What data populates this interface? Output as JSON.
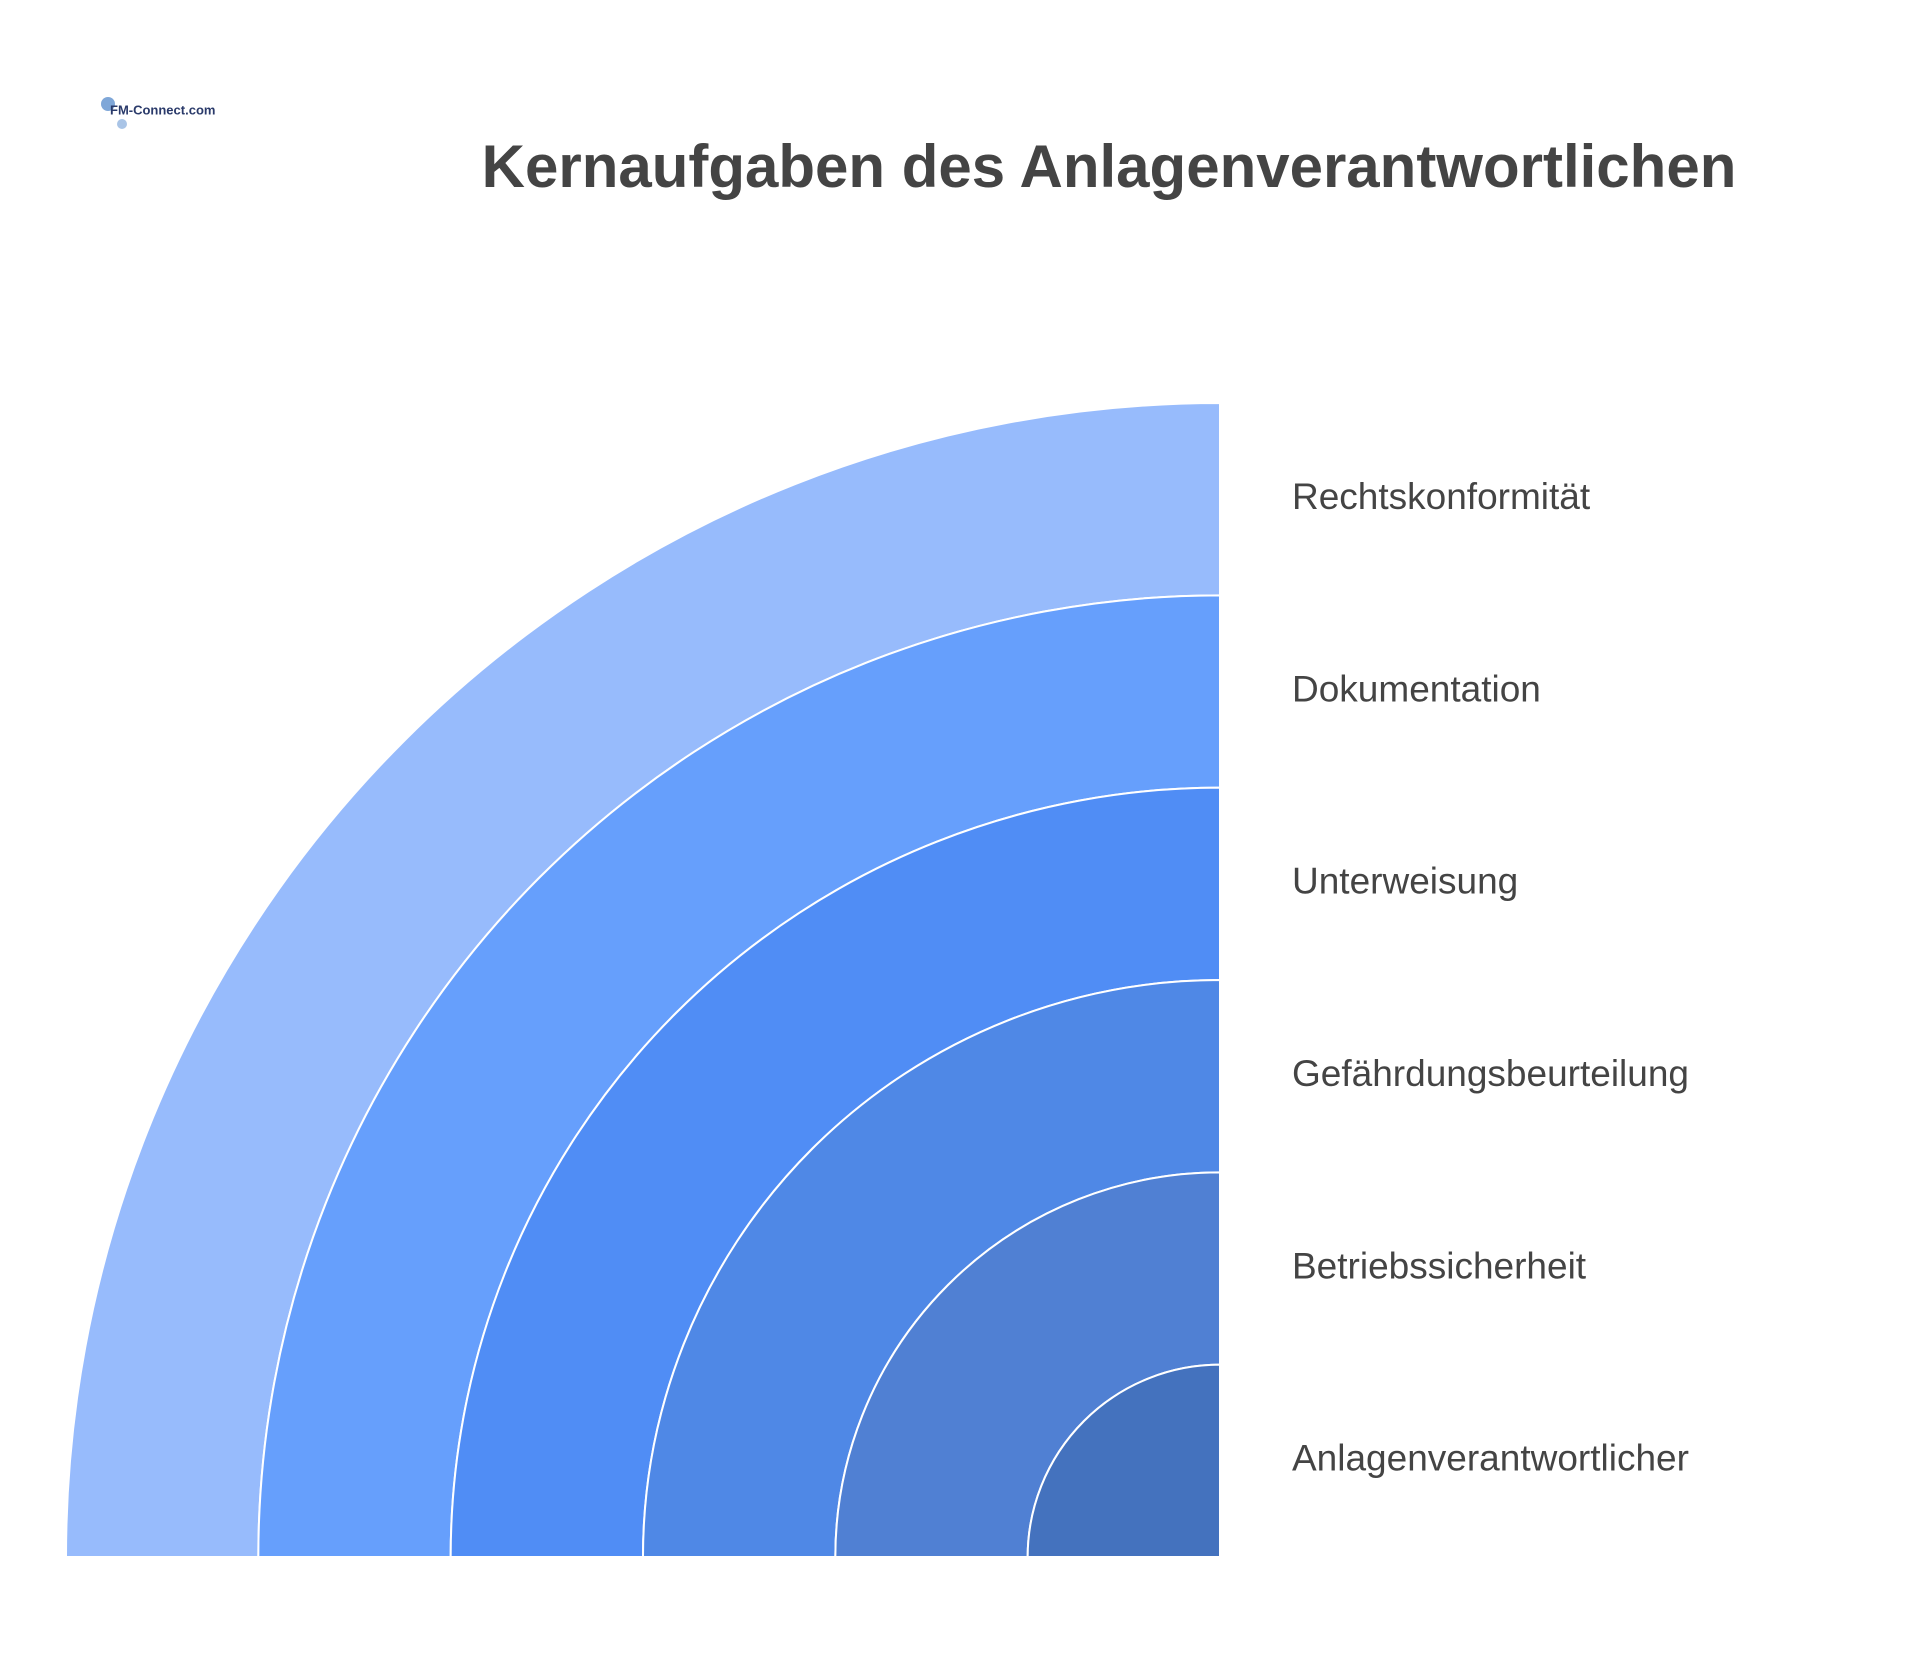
{
  "header": {
    "logo": "FM-Connect.com",
    "title": "Kernaufgaben des Anlagenverantwortlichen"
  },
  "layers": [
    "Rechtskonformität",
    "Dokumentation",
    "Unterweisung",
    "Gefährdungsbeurteilung",
    "Betriebssicherheit",
    "Anlagenverantwortlicher"
  ]
}
